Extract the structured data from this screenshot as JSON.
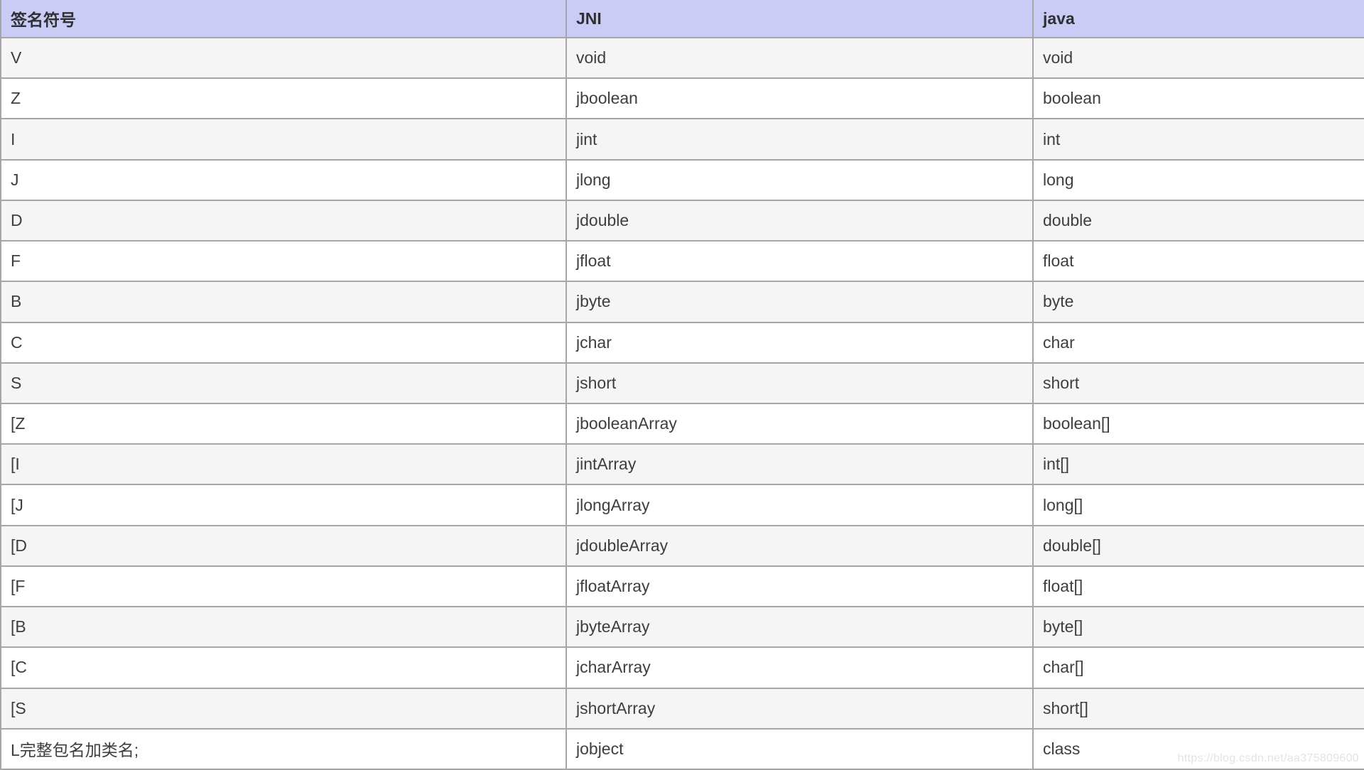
{
  "page": {
    "watermark": "https://blog.csdn.net/aa375809600"
  },
  "colors": {
    "header_bg": "#cbccf5",
    "row_shade_bg": "#f5f5f6",
    "row_plain_bg": "#ffffff",
    "border": "#a5a5aa",
    "text": "#3e3e40",
    "watermark_text": "#e3e3e6"
  },
  "table": {
    "headers": {
      "sig": "签名符号",
      "jni": "JNI",
      "java": "java"
    },
    "rows": [
      {
        "sig": "V",
        "jni": "void",
        "java": "void"
      },
      {
        "sig": "Z",
        "jni": "jboolean",
        "java": "boolean"
      },
      {
        "sig": "I",
        "jni": "jint",
        "java": "int"
      },
      {
        "sig": "J",
        "jni": "jlong",
        "java": "long"
      },
      {
        "sig": "D",
        "jni": "jdouble",
        "java": "double"
      },
      {
        "sig": "F",
        "jni": "jfloat",
        "java": "float"
      },
      {
        "sig": "B",
        "jni": "jbyte",
        "java": "byte"
      },
      {
        "sig": "C",
        "jni": "jchar",
        "java": "char"
      },
      {
        "sig": "S",
        "jni": "jshort",
        "java": "short"
      },
      {
        "sig": "[Z",
        "jni": "jbooleanArray",
        "java": "boolean[]"
      },
      {
        "sig": "[I",
        "jni": "jintArray",
        "java": "int[]"
      },
      {
        "sig": "[J",
        "jni": "jlongArray",
        "java": "long[]"
      },
      {
        "sig": "[D",
        "jni": "jdoubleArray",
        "java": "double[]"
      },
      {
        "sig": "[F",
        "jni": "jfloatArray",
        "java": "float[]"
      },
      {
        "sig": "[B",
        "jni": "jbyteArray",
        "java": "byte[]"
      },
      {
        "sig": "[C",
        "jni": "jcharArray",
        "java": "char[]"
      },
      {
        "sig": "[S",
        "jni": "jshortArray",
        "java": "short[]"
      },
      {
        "sig": "L完整包名加类名;",
        "jni": "jobject",
        "java": "class"
      }
    ]
  }
}
